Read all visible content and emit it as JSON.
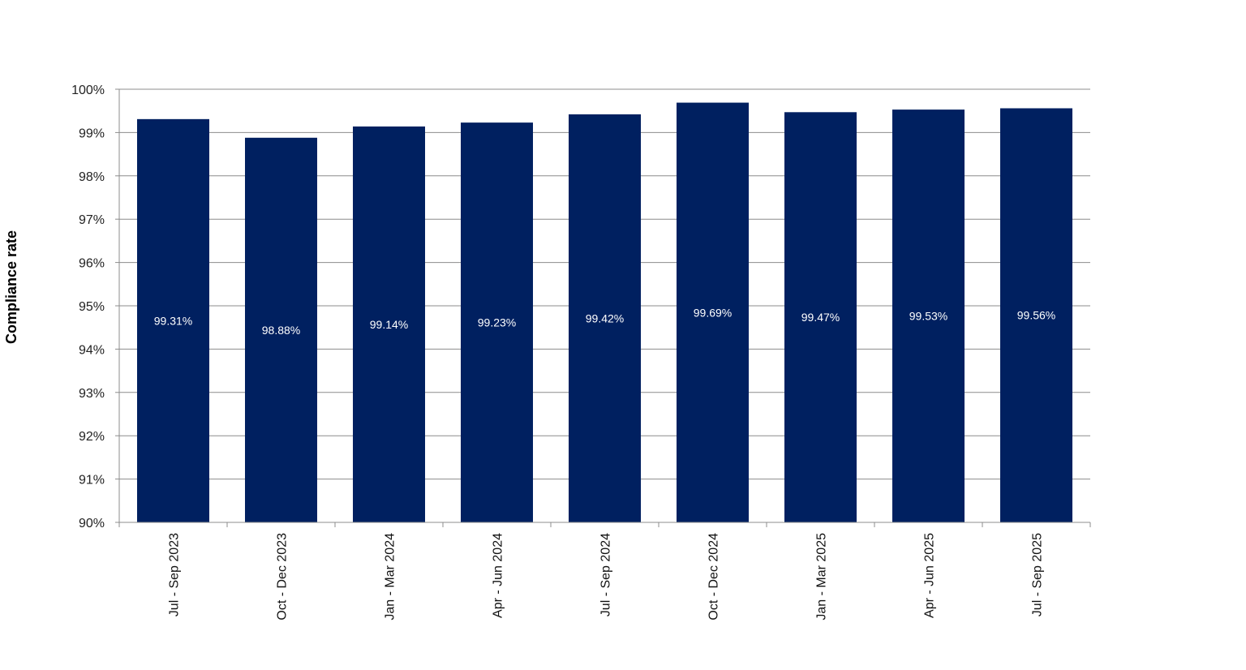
{
  "chart_data": {
    "type": "bar",
    "title": "",
    "xlabel": "",
    "ylabel": "Compliance rate",
    "ylim": [
      90,
      100
    ],
    "y_ticks": [
      "90%",
      "91%",
      "92%",
      "93%",
      "94%",
      "95%",
      "96%",
      "97%",
      "98%",
      "99%",
      "100%"
    ],
    "grid": true,
    "legend": "none",
    "bar_color": "#002060",
    "categories": [
      "Jul - Sep 2023",
      "Oct - Dec 2023",
      "Jan - Mar 2024",
      "Apr - Jun 2024",
      "Jul - Sep 2024",
      "Oct - Dec 2024",
      "Jan - Mar 2025",
      "Apr - Jun 2025",
      "Jul - Sep 2025"
    ],
    "values": [
      99.31,
      98.88,
      99.14,
      99.23,
      99.42,
      99.69,
      99.47,
      99.53,
      99.56
    ],
    "data_labels": [
      "99.31%",
      "98.88%",
      "99.14%",
      "99.23%",
      "99.42%",
      "99.69%",
      "99.47%",
      "99.53%",
      "99.56%"
    ]
  }
}
